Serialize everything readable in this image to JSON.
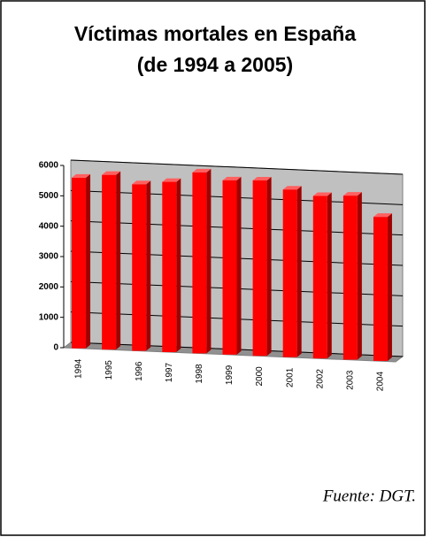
{
  "chart_data": {
    "type": "bar3d",
    "title": "Víctimas mortales en España",
    "subtitle": "(de 1994 a 2005)",
    "categories": [
      "1994",
      "1995",
      "1996",
      "1997",
      "1998",
      "1999",
      "2000",
      "2001",
      "2002",
      "2003",
      "2004"
    ],
    "values": [
      5615,
      5751,
      5483,
      5604,
      5957,
      5738,
      5776,
      5517,
      5347,
      5399,
      4741
    ],
    "color": "#ff0000",
    "ylim": [
      0,
      6000
    ],
    "yticks": [
      0,
      1000,
      2000,
      3000,
      4000,
      5000,
      6000
    ],
    "grid": true,
    "source": "Fuente: DGT."
  }
}
